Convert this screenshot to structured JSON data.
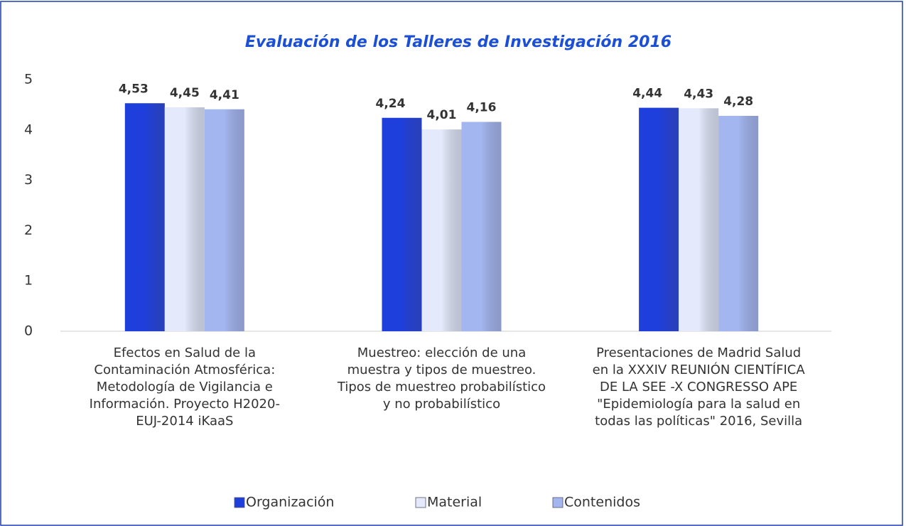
{
  "chart_data": {
    "type": "bar",
    "title": "Evaluación de los Talleres de Investigación 2016",
    "categories": [
      "Efectos en Salud de la Contaminación Atmosférica: Metodología de Vigilancia e Información. Proyecto H2020-EUJ-2014 iKaaS",
      "Muestreo: elección de una muestra y tipos de muestreo. Tipos de muestreo probabilístico y no probabilístico",
      "Presentaciones de Madrid Salud en la XXXIV REUNIÓN CIENTÍFICA DE LA SEE - X CONGRESSO APE \"Epidemiología para la salud en todas las políticas\" 2016, Sevilla"
    ],
    "series": [
      {
        "name": "Organización",
        "color": "#1f3fdc",
        "values": [
          4.53,
          4.24,
          4.44
        ],
        "value_labels": [
          "4,53",
          "4,24",
          "4,44"
        ]
      },
      {
        "name": "Material",
        "color": "#e4eafb",
        "values": [
          4.45,
          4.01,
          4.43
        ],
        "value_labels": [
          "4,45",
          "4,01",
          "4,43"
        ]
      },
      {
        "name": "Contenidos",
        "color": "#a4b6f0",
        "values": [
          4.41,
          4.16,
          4.28
        ],
        "value_labels": [
          "4,41",
          "4,16",
          "4,28"
        ]
      }
    ],
    "ylim": [
      0,
      5
    ],
    "yticks": [
      0,
      1,
      2,
      3,
      4,
      5
    ],
    "legend": "bottom"
  }
}
